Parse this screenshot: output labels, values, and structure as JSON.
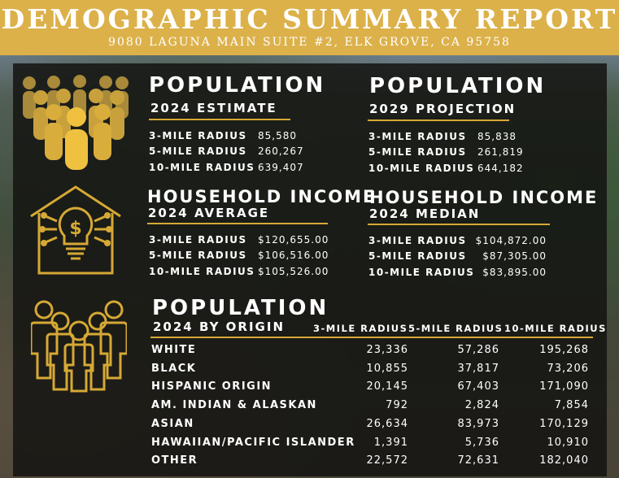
{
  "header": {
    "title": "DEMOGRAPHIC SUMMARY REPORT",
    "address": "9080 LAGUNA MAIN SUITE #2, ELK GROVE, CA 95758"
  },
  "pop2024": {
    "title": "POPULATION",
    "subtitle": "2024 ESTIMATE",
    "rows": [
      {
        "label": "3-MILE RADIUS",
        "value": "85,580"
      },
      {
        "label": "5-MILE RADIUS",
        "value": "260,267"
      },
      {
        "label": "10-MILE RADIUS",
        "value": "639,407"
      }
    ]
  },
  "pop2029": {
    "title": "POPULATION",
    "subtitle": "2029 PROJECTION",
    "rows": [
      {
        "label": "3-MILE RADIUS",
        "value": "85,838"
      },
      {
        "label": "5-MILE RADIUS",
        "value": "261,819"
      },
      {
        "label": "10-MILE RADIUS",
        "value": "644,182"
      }
    ]
  },
  "incAvg": {
    "title": "HOUSEHOLD INCOME",
    "subtitle": "2024 AVERAGE",
    "rows": [
      {
        "label": "3-MILE RADIUS",
        "value": "$120,655.00"
      },
      {
        "label": "5-MILE RADIUS",
        "value": "$106,516.00"
      },
      {
        "label": "10-MILE RADIUS",
        "value": "$105,526.00"
      }
    ]
  },
  "incMed": {
    "title": "HOUSEHOLD INCOME",
    "subtitle": "2024 MEDIAN",
    "rows": [
      {
        "label": "3-MILE RADIUS",
        "value": "$104,872.00"
      },
      {
        "label": "5-MILE RADIUS",
        "value": "$87,305.00"
      },
      {
        "label": "10-MILE RADIUS",
        "value": "$83,895.00"
      }
    ]
  },
  "origin": {
    "title": "POPULATION",
    "subtitle": "2024 BY ORIGIN",
    "columns": [
      "3-MILE RADIUS",
      "5-MILE RADIUS",
      "10-MILE RADIUS"
    ],
    "rows": [
      {
        "label": "WHITE",
        "v3": "23,336",
        "v5": "57,286",
        "v10": "195,268"
      },
      {
        "label": "BLACK",
        "v3": "10,855",
        "v5": "37,817",
        "v10": "73,206"
      },
      {
        "label": "HISPANIC ORIGIN",
        "v3": "20,145",
        "v5": "67,403",
        "v10": "171,090"
      },
      {
        "label": "AM. INDIAN & ALASKAN",
        "v3": "792",
        "v5": "2,824",
        "v10": "7,854"
      },
      {
        "label": "ASIAN",
        "v3": "26,634",
        "v5": "83,973",
        "v10": "170,129"
      },
      {
        "label": "HAWAIIAN/PACIFIC ISLANDER",
        "v3": "1,391",
        "v5": "5,736",
        "v10": "10,910"
      },
      {
        "label": "OTHER",
        "v3": "22,572",
        "v5": "72,631",
        "v10": "182,040"
      }
    ]
  },
  "colors": {
    "accent": "#dcb14a",
    "panel": "#141412",
    "text": "#ffffff"
  }
}
